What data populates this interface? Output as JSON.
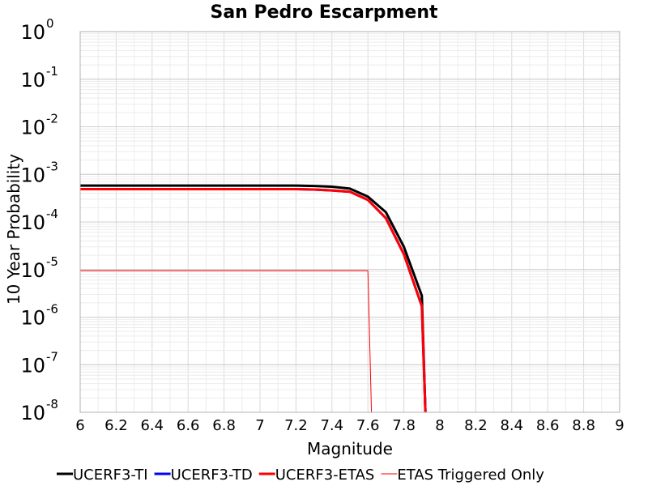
{
  "chart_data": {
    "type": "line",
    "title": "San Pedro Escarpment",
    "xlabel": "Magnitude",
    "ylabel": "10 Year Probability",
    "xlim": [
      6,
      9
    ],
    "ylim": [
      1e-08,
      1
    ],
    "yscale": "log",
    "grid": true,
    "legend_position": "bottom",
    "x_ticks": [
      "6",
      "6.2",
      "6.4",
      "6.6",
      "6.8",
      "7",
      "7.2",
      "7.4",
      "7.6",
      "7.8",
      "8",
      "8.2",
      "8.4",
      "8.6",
      "8.8",
      "9"
    ],
    "y_ticks": [
      {
        "base": "10",
        "exp": "0"
      },
      {
        "base": "10",
        "exp": "-1"
      },
      {
        "base": "10",
        "exp": "-2"
      },
      {
        "base": "10",
        "exp": "-3"
      },
      {
        "base": "10",
        "exp": "-4"
      },
      {
        "base": "10",
        "exp": "-5"
      },
      {
        "base": "10",
        "exp": "-6"
      },
      {
        "base": "10",
        "exp": "-7"
      },
      {
        "base": "10",
        "exp": "-8"
      }
    ],
    "series": [
      {
        "name": "UCERF3-TI",
        "color": "#000000",
        "width": 3,
        "points": [
          [
            6.0,
            0.00058
          ],
          [
            7.2,
            0.00058
          ],
          [
            7.3,
            0.00057
          ],
          [
            7.4,
            0.00055
          ],
          [
            7.5,
            0.0005
          ],
          [
            7.6,
            0.00034
          ],
          [
            7.7,
            0.00016
          ],
          [
            7.8,
            3e-05
          ],
          [
            7.9,
            2.8e-06
          ],
          [
            7.92,
            1e-08
          ]
        ]
      },
      {
        "name": "UCERF3-TD",
        "color": "#0000ff",
        "width": 3,
        "points": [
          [
            6.0,
            0.00049
          ],
          [
            7.2,
            0.00049
          ],
          [
            7.3,
            0.00048
          ],
          [
            7.4,
            0.00046
          ],
          [
            7.5,
            0.00043
          ],
          [
            7.6,
            0.00029
          ],
          [
            7.7,
            0.00012
          ],
          [
            7.8,
            2.1e-05
          ],
          [
            7.9,
            1.7e-06
          ],
          [
            7.92,
            1e-08
          ]
        ]
      },
      {
        "name": "UCERF3-ETAS",
        "color": "#ff0000",
        "width": 3,
        "points": [
          [
            6.0,
            0.00049
          ],
          [
            7.2,
            0.00049
          ],
          [
            7.3,
            0.00048
          ],
          [
            7.4,
            0.00046
          ],
          [
            7.5,
            0.00043
          ],
          [
            7.6,
            0.00029
          ],
          [
            7.7,
            0.00012
          ],
          [
            7.8,
            2.1e-05
          ],
          [
            7.9,
            1.7e-06
          ],
          [
            7.92,
            1e-08
          ]
        ]
      },
      {
        "name": "ETAS Triggered Only",
        "color": "#ff0000",
        "width": 1,
        "points": [
          [
            6.0,
            9.5e-06
          ],
          [
            7.6,
            9.5e-06
          ],
          [
            7.62,
            1e-08
          ]
        ]
      }
    ]
  }
}
